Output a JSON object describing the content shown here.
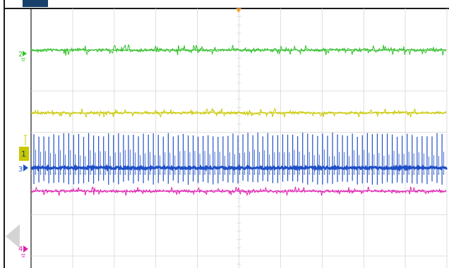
{
  "colors": {
    "background": "#ffffff",
    "frame": "#1a1a1a",
    "grid": "#d6d6d6",
    "top_bar": "#17406b",
    "trigger_marker": "#f0a030",
    "nav_arrow": "#d4d4d4",
    "channels": {
      "ch1": "#c8c800",
      "ch2": "#31c02a",
      "ch3": "#1f4fc7",
      "ch4": "#e020b0"
    }
  },
  "channels": [
    {
      "id": "ch1",
      "label": "1",
      "trace": "noisy",
      "icon": "channel-1-marker-icon"
    },
    {
      "id": "ch2",
      "label": "2",
      "trace": "noisy",
      "icon": "channel-2-marker-icon"
    },
    {
      "id": "ch3",
      "label": "3",
      "trace": "pulse-train",
      "icon": "channel-3-marker-icon"
    },
    {
      "id": "ch4",
      "label": "4",
      "trace": "noisy",
      "icon": "channel-4-marker-icon"
    }
  ],
  "icons": {
    "trigger": "trigger-position-icon",
    "prev_nav": "previous-page-arrow-icon",
    "trigger_level": "trigger-level-icon"
  }
}
